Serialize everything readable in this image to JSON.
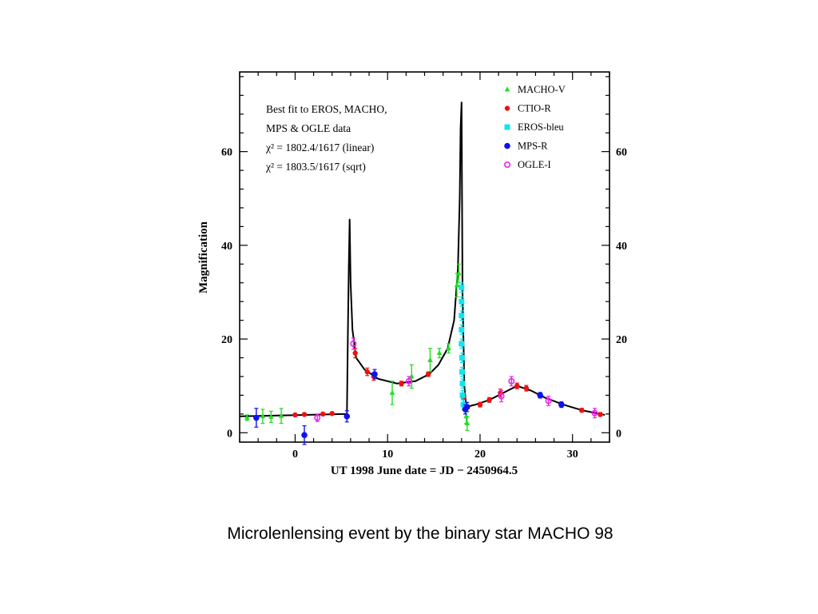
{
  "caption": "Microlenlensing event by the binary star MACHO 98",
  "chart_data": {
    "type": "scatter",
    "xlabel": "UT 1998 June date = JD − 2450964.5",
    "ylabel": "Magnification",
    "xlim": [
      -6,
      34
    ],
    "ylim": [
      -2,
      77
    ],
    "x_ticks": [
      0,
      10,
      20,
      30
    ],
    "y_ticks": [
      0,
      20,
      40,
      60
    ],
    "grid": false,
    "legend_position": "top-right",
    "annotation": [
      "Best fit to EROS, MACHO,",
      "MPS & OGLE data",
      "χ² = 1802.4/1617 (linear)",
      "χ² = 1803.5/1617 (sqrt)"
    ],
    "series": [
      {
        "name": "MACHO-V",
        "color": "#22dd22",
        "marker": "triangle",
        "points": [
          {
            "x": -5.2,
            "y": 3.2,
            "e": 0.6
          },
          {
            "x": -3.5,
            "y": 3.5,
            "e": 1.5
          },
          {
            "x": -2.6,
            "y": 3.4,
            "e": 1.2
          },
          {
            "x": -1.5,
            "y": 3.6,
            "e": 1.6
          },
          {
            "x": 10.5,
            "y": 8.5,
            "e": 2.5
          },
          {
            "x": 12.6,
            "y": 12.0,
            "e": 2.5
          },
          {
            "x": 14.6,
            "y": 15.5,
            "e": 2.5
          },
          {
            "x": 15.6,
            "y": 17.0,
            "e": 1.0
          },
          {
            "x": 16.6,
            "y": 18.0,
            "e": 1.0
          },
          {
            "x": 17.5,
            "y": 31.5,
            "e": 2.5
          },
          {
            "x": 17.7,
            "y": 34.0,
            "e": 2.0
          },
          {
            "x": 18.5,
            "y": 3.5,
            "e": 1.5
          },
          {
            "x": 18.6,
            "y": 2.0,
            "e": 1.5
          }
        ]
      },
      {
        "name": "CTIO-R",
        "color": "#ee1111",
        "marker": "circle",
        "points": [
          {
            "x": 0.0,
            "y": 3.8,
            "e": 0.3
          },
          {
            "x": 1.0,
            "y": 3.9,
            "e": 0.3
          },
          {
            "x": 3.0,
            "y": 4.0,
            "e": 0.3
          },
          {
            "x": 4.0,
            "y": 4.1,
            "e": 0.3
          },
          {
            "x": 6.5,
            "y": 17.0,
            "e": 1.0
          },
          {
            "x": 7.8,
            "y": 13.0,
            "e": 0.8
          },
          {
            "x": 8.5,
            "y": 12.0,
            "e": 0.8
          },
          {
            "x": 11.5,
            "y": 10.5,
            "e": 0.5
          },
          {
            "x": 14.4,
            "y": 12.5,
            "e": 0.5
          },
          {
            "x": 18.2,
            "y": 7.5,
            "e": 1.0
          },
          {
            "x": 20.0,
            "y": 6.0,
            "e": 0.5
          },
          {
            "x": 21.0,
            "y": 7.0,
            "e": 0.5
          },
          {
            "x": 22.2,
            "y": 8.5,
            "e": 0.8
          },
          {
            "x": 24.0,
            "y": 10.0,
            "e": 0.6
          },
          {
            "x": 25.0,
            "y": 9.5,
            "e": 0.6
          },
          {
            "x": 31.0,
            "y": 4.8,
            "e": 0.4
          },
          {
            "x": 33.0,
            "y": 3.9,
            "e": 0.4
          }
        ]
      },
      {
        "name": "EROS-bleu",
        "color": "#11e5ee",
        "marker": "square",
        "points": [
          {
            "x": 18.0,
            "y": 31.0,
            "e": 1.0
          },
          {
            "x": 18.0,
            "y": 28.0,
            "e": 1.0
          },
          {
            "x": 18.0,
            "y": 25.0,
            "e": 1.0
          },
          {
            "x": 18.0,
            "y": 22.0,
            "e": 1.0
          },
          {
            "x": 18.0,
            "y": 19.0,
            "e": 1.0
          },
          {
            "x": 18.05,
            "y": 16.0,
            "e": 1.0
          },
          {
            "x": 18.05,
            "y": 13.0,
            "e": 1.0
          },
          {
            "x": 18.1,
            "y": 10.5,
            "e": 1.0
          },
          {
            "x": 18.1,
            "y": 8.0,
            "e": 1.0
          },
          {
            "x": 18.2,
            "y": 6.0,
            "e": 1.0
          }
        ]
      },
      {
        "name": "MPS-R",
        "color": "#1111ee",
        "marker": "filled-circle",
        "points": [
          {
            "x": -4.2,
            "y": 3.2,
            "e": 2.0
          },
          {
            "x": 1.0,
            "y": -0.5,
            "e": 2.0
          },
          {
            "x": 5.6,
            "y": 3.5,
            "e": 1.2
          },
          {
            "x": 8.6,
            "y": 12.5,
            "e": 1.0
          },
          {
            "x": 18.4,
            "y": 5.0,
            "e": 1.0
          },
          {
            "x": 18.6,
            "y": 5.5,
            "e": 1.0
          },
          {
            "x": 26.5,
            "y": 8.0,
            "e": 0.6
          },
          {
            "x": 28.8,
            "y": 6.0,
            "e": 0.6
          }
        ]
      },
      {
        "name": "OGLE-I",
        "color": "#ee22ee",
        "marker": "open-circle",
        "points": [
          {
            "x": 2.4,
            "y": 3.2,
            "e": 0.8
          },
          {
            "x": 6.3,
            "y": 19.0,
            "e": 1.2
          },
          {
            "x": 12.3,
            "y": 11.0,
            "e": 1.0
          },
          {
            "x": 22.3,
            "y": 7.8,
            "e": 1.2
          },
          {
            "x": 23.4,
            "y": 11.0,
            "e": 1.0
          },
          {
            "x": 27.4,
            "y": 6.8,
            "e": 1.0
          },
          {
            "x": 32.4,
            "y": 4.2,
            "e": 1.0
          }
        ]
      }
    ],
    "fit_curve": {
      "x": [
        -6,
        5.6,
        5.7,
        5.8,
        5.9,
        6.0,
        6.2,
        6.6,
        7.5,
        9.0,
        11.0,
        13.0,
        14.5,
        15.5,
        16.5,
        17.2,
        17.6,
        17.8,
        17.9,
        18.0,
        18.05,
        18.1,
        18.3,
        18.5,
        19.5,
        21.0,
        22.5,
        24.0,
        25.5,
        27.0,
        29.0,
        31.0,
        33.5
      ],
      "y": [
        3.5,
        4.0,
        20.0,
        35.0,
        45.5,
        32.0,
        22.0,
        16.0,
        13.5,
        11.5,
        10.5,
        11.0,
        12.5,
        14.5,
        18.0,
        24.0,
        35.0,
        50.0,
        65.0,
        70.5,
        50.0,
        30.0,
        10.0,
        5.5,
        6.0,
        7.0,
        8.5,
        10.0,
        9.0,
        7.5,
        6.0,
        4.8,
        3.8
      ]
    }
  }
}
